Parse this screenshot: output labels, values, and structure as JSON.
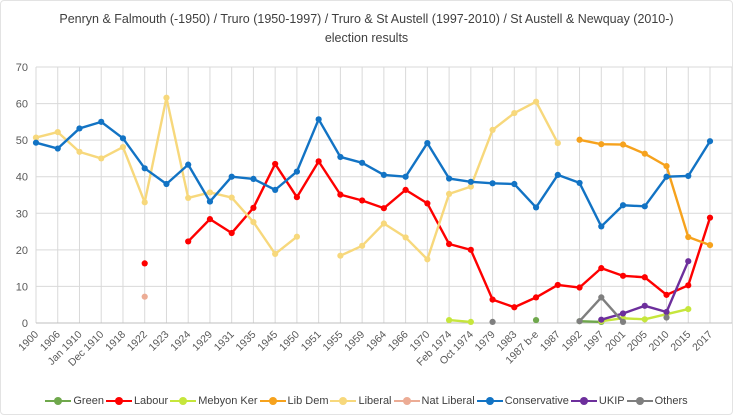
{
  "chart_data": {
    "type": "line",
    "title": "Penryn & Falmouth (-1950) / Truro (1950-1997) / Truro & St Austell (1997-2010) / St Austell & Newquay (2010-) election results",
    "xlabel": "",
    "ylabel": "",
    "ylim": [
      0,
      70
    ],
    "ytick_step": 10,
    "grid": true,
    "legend_position": "bottom",
    "yticks": [
      "0",
      "10",
      "20",
      "30",
      "40",
      "50",
      "60",
      "70"
    ],
    "categories": [
      "1900",
      "1906",
      "Jan 1910",
      "Dec 1910",
      "1918",
      "1922",
      "1923",
      "1924",
      "1929",
      "1931",
      "1935",
      "1945",
      "1950",
      "1951",
      "1955",
      "1959",
      "1964",
      "1966",
      "1970",
      "Feb 1974",
      "Oct 1974",
      "1979",
      "1983",
      "1987 b-e",
      "1987",
      "1992",
      "1997",
      "2001",
      "2005",
      "2010",
      "2015",
      "2017"
    ],
    "series": [
      {
        "name": "Green",
        "color": "#6fa84c",
        "values": [
          null,
          null,
          null,
          null,
          null,
          null,
          null,
          null,
          null,
          null,
          null,
          null,
          null,
          null,
          null,
          null,
          null,
          null,
          null,
          null,
          null,
          null,
          null,
          0.8,
          null,
          0.5,
          0.3,
          null,
          null,
          null,
          null,
          null
        ]
      },
      {
        "name": "Labour",
        "color": "#fe0000",
        "values": [
          null,
          null,
          null,
          null,
          null,
          16.3,
          null,
          22.3,
          28.4,
          24.6,
          31.5,
          43.5,
          34.4,
          44.2,
          35.1,
          33.5,
          31.4,
          36.4,
          32.7,
          21.6,
          20.0,
          6.4,
          4.3,
          7.0,
          10.4,
          9.7,
          15.0,
          12.9,
          12.5,
          7.7,
          10.3,
          28.8
        ]
      },
      {
        "name": "Mebyon Ker",
        "color": "#c6e63c",
        "values": [
          null,
          null,
          null,
          null,
          null,
          null,
          null,
          null,
          null,
          null,
          null,
          null,
          null,
          null,
          null,
          null,
          null,
          null,
          null,
          0.8,
          0.3,
          null,
          null,
          null,
          null,
          null,
          0.5,
          1.3,
          1.0,
          2.4,
          3.8,
          null
        ]
      },
      {
        "name": "Lib Dem",
        "color": "#f6a21d",
        "values": [
          null,
          null,
          null,
          null,
          null,
          null,
          null,
          null,
          null,
          null,
          null,
          null,
          null,
          null,
          null,
          null,
          null,
          null,
          null,
          null,
          null,
          null,
          null,
          null,
          null,
          50.1,
          48.9,
          48.8,
          46.3,
          42.9,
          23.5,
          21.3
        ]
      },
      {
        "name": "Liberal",
        "color": "#f7d87c",
        "values": [
          50.7,
          52.2,
          46.8,
          45.0,
          48.1,
          33.0,
          61.6,
          34.2,
          35.7,
          34.3,
          27.6,
          18.9,
          23.6,
          null,
          18.4,
          21.1,
          27.2,
          23.4,
          17.4,
          35.3,
          37.3,
          52.8,
          57.4,
          60.5,
          49.2,
          null,
          null,
          null,
          null,
          null,
          null,
          null
        ]
      },
      {
        "name": "Nat Liberal",
        "color": "#ecac95",
        "values": [
          null,
          null,
          null,
          null,
          null,
          7.2,
          null,
          null,
          null,
          null,
          null,
          null,
          null,
          null,
          null,
          null,
          null,
          null,
          null,
          null,
          null,
          null,
          null,
          null,
          null,
          null,
          null,
          null,
          null,
          null,
          null,
          null
        ]
      },
      {
        "name": "Conservative",
        "color": "#1273c4",
        "values": [
          49.3,
          47.7,
          53.2,
          55.0,
          50.5,
          42.3,
          38.0,
          43.3,
          33.2,
          40.0,
          39.4,
          36.4,
          41.4,
          55.7,
          45.4,
          43.8,
          40.5,
          40.0,
          49.2,
          39.5,
          38.6,
          38.2,
          38.0,
          31.6,
          40.5,
          38.3,
          26.4,
          32.2,
          31.9,
          40.0,
          40.2,
          49.7
        ]
      },
      {
        "name": "UKIP",
        "color": "#6d2f9c",
        "values": [
          null,
          null,
          null,
          null,
          null,
          null,
          null,
          null,
          null,
          null,
          null,
          null,
          null,
          null,
          null,
          null,
          null,
          null,
          null,
          null,
          null,
          null,
          null,
          null,
          null,
          null,
          0.9,
          2.6,
          4.7,
          3.0,
          16.9,
          null
        ]
      },
      {
        "name": "Others",
        "color": "#7f7f7f",
        "values": [
          null,
          null,
          null,
          null,
          null,
          null,
          null,
          null,
          null,
          null,
          null,
          null,
          null,
          null,
          null,
          null,
          null,
          null,
          null,
          null,
          null,
          0.3,
          null,
          null,
          null,
          0.5,
          7.0,
          0.3,
          null,
          1.5,
          null,
          null
        ]
      }
    ],
    "colors": {
      "gridline": "#d9d9d9",
      "axis_line": "#bfbfbf",
      "tick_label": "#595959",
      "title_text": "#3f3f3f"
    }
  }
}
